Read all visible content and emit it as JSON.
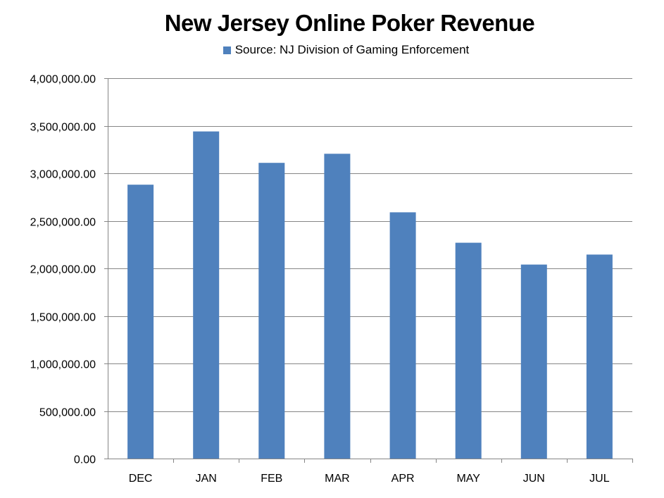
{
  "chart_data": {
    "type": "bar",
    "title": "New Jersey Online Poker Revenue",
    "categories": [
      "DEC",
      "JAN",
      "FEB",
      "MAR",
      "APR",
      "MAY",
      "JUN",
      "JUL"
    ],
    "series": [
      {
        "name": "Source: NJ Division of Gaming Enforcement",
        "values": [
          2880000,
          3440000,
          3110000,
          3205000,
          2590000,
          2270000,
          2040000,
          2145000
        ]
      }
    ],
    "xlabel": "",
    "ylabel": "",
    "ylim": [
      0,
      4000000
    ],
    "yticks": [
      "0.00",
      "500,000.00",
      "1,000,000.00",
      "1,500,000.00",
      "2,000,000.00",
      "2,500,000.00",
      "3,000,000.00",
      "3,500,000.00",
      "4,000,000.00"
    ],
    "grid": true,
    "legend_position": "top-center",
    "bar_color": "#4F81BD"
  }
}
